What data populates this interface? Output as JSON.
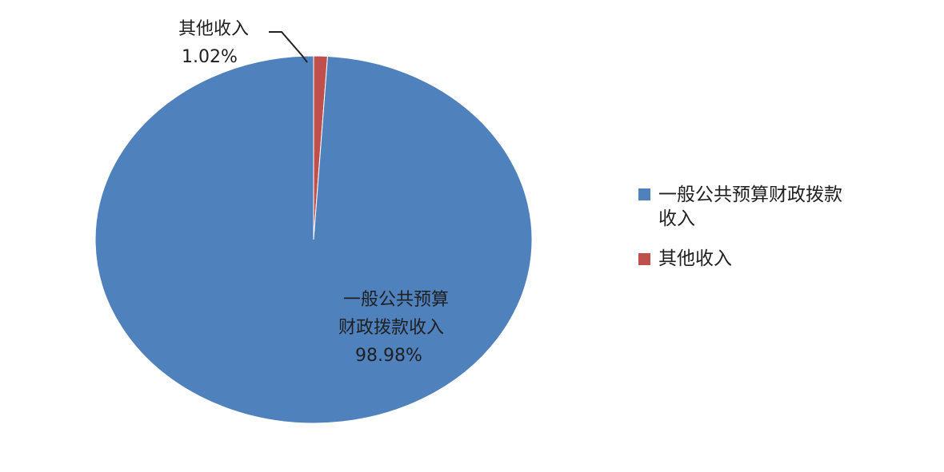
{
  "chart_data": {
    "type": "pie",
    "title": "",
    "slices": [
      {
        "label": "一般公共预算财政拨款收入",
        "label_lines": [
          "一般公共预算",
          "财政拨款收入"
        ],
        "legend_lines": [
          "一般公共预算财政拨款",
          "收入"
        ],
        "value": 98.98,
        "value_text": "98.98%",
        "color": "#4f81bd"
      },
      {
        "label": "其他收入",
        "label_lines": [
          "其他收入"
        ],
        "legend_lines": [
          "其他收入"
        ],
        "value": 1.02,
        "value_text": "1.02%",
        "color": "#c0504d"
      }
    ],
    "legend_position": "right"
  }
}
